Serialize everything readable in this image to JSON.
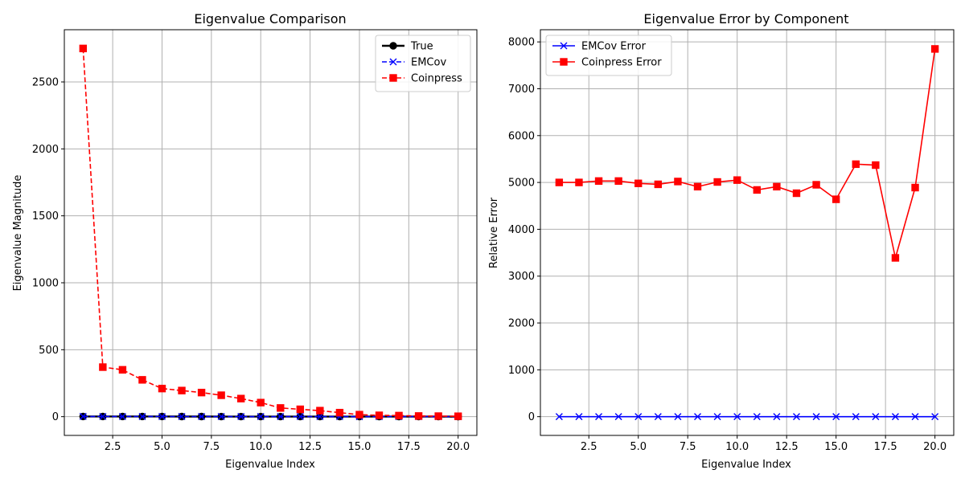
{
  "chart_data": [
    {
      "type": "line",
      "title": "Eigenvalue Comparison",
      "xlabel": "Eigenvalue Index",
      "ylabel": "Eigenvalue Magnitude",
      "xlim": [
        0.05,
        20.95
      ],
      "ylim": [
        -140,
        2890
      ],
      "xticks": [
        2.5,
        5.0,
        7.5,
        10.0,
        12.5,
        15.0,
        17.5,
        20.0
      ],
      "xtick_labels": [
        "2.5",
        "5.0",
        "7.5",
        "10.0",
        "12.5",
        "15.0",
        "17.5",
        "20.0"
      ],
      "yticks": [
        0,
        500,
        1000,
        1500,
        2000,
        2500
      ],
      "ytick_labels": [
        "0",
        "500",
        "1000",
        "1500",
        "2000",
        "2500"
      ],
      "grid": true,
      "legend_position": "upper-right",
      "x": [
        1,
        2,
        3,
        4,
        5,
        6,
        7,
        8,
        9,
        10,
        11,
        12,
        13,
        14,
        15,
        16,
        17,
        18,
        19,
        20
      ],
      "series": [
        {
          "name": "True",
          "color": "#000000",
          "marker": "circle",
          "linestyle": "solid",
          "values": [
            1.5,
            1.4,
            1.3,
            1.2,
            1.1,
            1.0,
            0.95,
            0.9,
            0.85,
            0.8,
            0.75,
            0.7,
            0.65,
            0.6,
            0.55,
            0.5,
            0.45,
            0.4,
            0.35,
            0.3
          ]
        },
        {
          "name": "EMCov",
          "color": "#0000ff",
          "marker": "x",
          "linestyle": "dashed",
          "values": [
            1.5,
            1.4,
            1.3,
            1.2,
            1.1,
            1.0,
            0.95,
            0.9,
            0.85,
            0.8,
            0.75,
            0.7,
            0.65,
            0.6,
            0.55,
            0.5,
            0.45,
            0.4,
            0.35,
            0.3
          ]
        },
        {
          "name": "Coinpress",
          "color": "#ff0000",
          "marker": "square",
          "linestyle": "dashed",
          "values": [
            2750,
            370,
            350,
            275,
            210,
            195,
            180,
            160,
            135,
            105,
            65,
            55,
            45,
            30,
            15,
            10,
            8,
            5,
            4,
            3
          ]
        }
      ]
    },
    {
      "type": "line",
      "title": "Eigenvalue Error by Component",
      "xlabel": "Eigenvalue Index",
      "ylabel": "Relative Error",
      "xlim": [
        0.05,
        20.95
      ],
      "ylim": [
        -400,
        8260
      ],
      "xticks": [
        2.5,
        5.0,
        7.5,
        10.0,
        12.5,
        15.0,
        17.5,
        20.0
      ],
      "xtick_labels": [
        "2.5",
        "5.0",
        "7.5",
        "10.0",
        "12.5",
        "15.0",
        "17.5",
        "20.0"
      ],
      "yticks": [
        0,
        1000,
        2000,
        3000,
        4000,
        5000,
        6000,
        7000,
        8000
      ],
      "ytick_labels": [
        "0",
        "1000",
        "2000",
        "3000",
        "4000",
        "5000",
        "6000",
        "7000",
        "8000"
      ],
      "grid": true,
      "legend_position": "upper-left",
      "x": [
        1,
        2,
        3,
        4,
        5,
        6,
        7,
        8,
        9,
        10,
        11,
        12,
        13,
        14,
        15,
        16,
        17,
        18,
        19,
        20
      ],
      "series": [
        {
          "name": "EMCov Error",
          "color": "#0000ff",
          "marker": "x",
          "linestyle": "solid",
          "values": [
            0,
            0,
            0,
            0,
            0,
            0,
            0,
            0,
            0,
            0,
            0,
            0,
            0,
            0,
            0,
            0,
            0,
            0,
            0,
            0
          ]
        },
        {
          "name": "Coinpress Error",
          "color": "#ff0000",
          "marker": "square",
          "linestyle": "solid",
          "values": [
            5000,
            5000,
            5030,
            5030,
            4980,
            4960,
            5020,
            4910,
            5010,
            5050,
            4840,
            4910,
            4770,
            4950,
            4640,
            5390,
            5370,
            3390,
            4890,
            7850
          ]
        }
      ]
    }
  ]
}
